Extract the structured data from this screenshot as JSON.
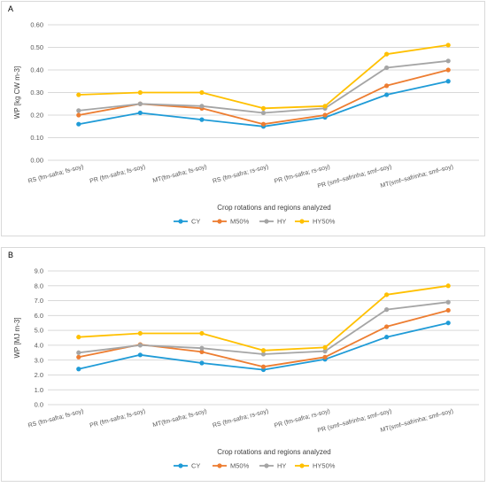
{
  "chart_data": [
    {
      "type": "line",
      "panel_label": "A",
      "title": "",
      "xlabel": "Crop rotations and regions analyzed",
      "ylabel": "WP [kg CW m-3]",
      "ylim": [
        0,
        0.6
      ],
      "yticks": [
        "0.00",
        "0.10",
        "0.20",
        "0.30",
        "0.40",
        "0.50",
        "0.60"
      ],
      "grid": true,
      "legend_position": "bottom",
      "categories": [
        "RS (fm-safra; fs-soy)",
        "PR (fm-safra; fs-soy)",
        "MT(fm-safra; fs-soy)",
        "RS (fm-safra; rs-soy)",
        "PR (fm-safra; rs-soy)",
        "PR (smf–safrinha; smf–soy)",
        "MT(smf–safrinha; smf–soy)"
      ],
      "series": [
        {
          "name": "CY",
          "color": "#1f9bd7",
          "values": [
            0.16,
            0.21,
            0.18,
            0.15,
            0.19,
            0.29,
            0.35
          ]
        },
        {
          "name": "M50%",
          "color": "#ed7d31",
          "values": [
            0.2,
            0.25,
            0.23,
            0.16,
            0.2,
            0.33,
            0.4
          ]
        },
        {
          "name": "HY",
          "color": "#a5a5a5",
          "values": [
            0.22,
            0.25,
            0.24,
            0.21,
            0.23,
            0.41,
            0.44
          ]
        },
        {
          "name": "HY50%",
          "color": "#ffc000",
          "values": [
            0.29,
            0.3,
            0.3,
            0.23,
            0.24,
            0.47,
            0.51
          ]
        }
      ]
    },
    {
      "type": "line",
      "panel_label": "B",
      "title": "",
      "xlabel": "Crop rotations and regions analyzed",
      "ylabel": "WP [MJ m-3]",
      "ylim": [
        0,
        9
      ],
      "yticks": [
        "0.0",
        "1.0",
        "2.0",
        "3.0",
        "4.0",
        "5.0",
        "6.0",
        "7.0",
        "8.0",
        "9.0"
      ],
      "grid": true,
      "legend_position": "bottom",
      "categories": [
        "RS (fm-safra; fs-soy)",
        "PR (fm-safra; fs-soy)",
        "MT(fm-safra; fs-soy)",
        "RS (fm-safra; rs-soy)",
        "PR (fm-safra; rs-soy)",
        "PR (smf–safrinha; smf–soy)",
        "MT(smf–safrinha; smf–soy)"
      ],
      "series": [
        {
          "name": "CY",
          "color": "#1f9bd7",
          "values": [
            2.4,
            3.35,
            2.8,
            2.35,
            3.05,
            4.55,
            5.5
          ]
        },
        {
          "name": "M50%",
          "color": "#ed7d31",
          "values": [
            3.2,
            4.05,
            3.55,
            2.55,
            3.2,
            5.25,
            6.35
          ]
        },
        {
          "name": "HY",
          "color": "#a5a5a5",
          "values": [
            3.5,
            4.0,
            3.8,
            3.4,
            3.6,
            6.4,
            6.9
          ]
        },
        {
          "name": "HY50%",
          "color": "#ffc000",
          "values": [
            4.55,
            4.8,
            4.8,
            3.65,
            3.85,
            7.4,
            8.0
          ]
        }
      ]
    }
  ]
}
